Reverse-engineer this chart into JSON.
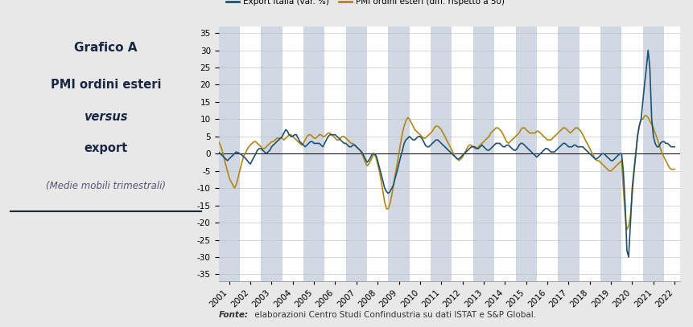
{
  "title_line1": "Grafico A",
  "title_line2": "PMI ordini esteri versus export",
  "subtitle": "(Medie mobili trimestrali)",
  "legend_export": "Export Italia (var. %)",
  "legend_pmi": "PMI ordini esteri (diff. rispetto a 50)",
  "fonte_bold": "Fonte:",
  "fonte_rest": " elaborazioni Centro Studi Confindustria su dati ISTAT e S&P Global.",
  "color_export": "#1a5276",
  "color_pmi": "#b5860a",
  "bg_color": "#e8e8e8",
  "plot_bg": "#ffffff",
  "band_color": "#d0d8e4",
  "ylim": [
    -37,
    37
  ],
  "yticks": [
    -35,
    -30,
    -25,
    -20,
    -15,
    -10,
    -5,
    0,
    5,
    10,
    15,
    20,
    25,
    30,
    35
  ],
  "years": [
    2001,
    2002,
    2003,
    2004,
    2005,
    2006,
    2007,
    2008,
    2009,
    2010,
    2011,
    2012,
    2013,
    2014,
    2015,
    2016,
    2017,
    2018,
    2019,
    2020,
    2021,
    2022
  ],
  "export_t": [
    2001.0,
    2001.08,
    2001.17,
    2001.25,
    2001.33,
    2001.42,
    2001.5,
    2001.58,
    2001.67,
    2001.75,
    2001.83,
    2001.92,
    2002.0,
    2002.08,
    2002.17,
    2002.25,
    2002.33,
    2002.42,
    2002.5,
    2002.58,
    2002.67,
    2002.75,
    2002.83,
    2002.92,
    2003.0,
    2003.08,
    2003.17,
    2003.25,
    2003.33,
    2003.42,
    2003.5,
    2003.58,
    2003.67,
    2003.75,
    2003.83,
    2003.92,
    2004.0,
    2004.08,
    2004.17,
    2004.25,
    2004.33,
    2004.42,
    2004.5,
    2004.58,
    2004.67,
    2004.75,
    2004.83,
    2004.92,
    2005.0,
    2005.08,
    2005.17,
    2005.25,
    2005.33,
    2005.42,
    2005.5,
    2005.58,
    2005.67,
    2005.75,
    2005.83,
    2005.92,
    2006.0,
    2006.08,
    2006.17,
    2006.25,
    2006.33,
    2006.42,
    2006.5,
    2006.58,
    2006.67,
    2006.75,
    2006.83,
    2006.92,
    2007.0,
    2007.08,
    2007.17,
    2007.25,
    2007.33,
    2007.42,
    2007.5,
    2007.58,
    2007.67,
    2007.75,
    2007.83,
    2007.92,
    2008.0,
    2008.08,
    2008.17,
    2008.25,
    2008.33,
    2008.42,
    2008.5,
    2008.58,
    2008.67,
    2008.75,
    2008.83,
    2008.92,
    2009.0,
    2009.08,
    2009.17,
    2009.25,
    2009.33,
    2009.42,
    2009.5,
    2009.58,
    2009.67,
    2009.75,
    2009.83,
    2009.92,
    2010.0,
    2010.08,
    2010.17,
    2010.25,
    2010.33,
    2010.42,
    2010.5,
    2010.58,
    2010.67,
    2010.75,
    2010.83,
    2010.92,
    2011.0,
    2011.08,
    2011.17,
    2011.25,
    2011.33,
    2011.42,
    2011.5,
    2011.58,
    2011.67,
    2011.75,
    2011.83,
    2011.92,
    2012.0,
    2012.08,
    2012.17,
    2012.25,
    2012.33,
    2012.42,
    2012.5,
    2012.58,
    2012.67,
    2012.75,
    2012.83,
    2012.92,
    2013.0,
    2013.08,
    2013.17,
    2013.25,
    2013.33,
    2013.42,
    2013.5,
    2013.58,
    2013.67,
    2013.75,
    2013.83,
    2013.92,
    2014.0,
    2014.08,
    2014.17,
    2014.25,
    2014.33,
    2014.42,
    2014.5,
    2014.58,
    2014.67,
    2014.75,
    2014.83,
    2014.92,
    2015.0,
    2015.08,
    2015.17,
    2015.25,
    2015.33,
    2015.42,
    2015.5,
    2015.58,
    2015.67,
    2015.75,
    2015.83,
    2015.92,
    2016.0,
    2016.08,
    2016.17,
    2016.25,
    2016.33,
    2016.42,
    2016.5,
    2016.58,
    2016.67,
    2016.75,
    2016.83,
    2016.92,
    2017.0,
    2017.08,
    2017.17,
    2017.25,
    2017.33,
    2017.42,
    2017.5,
    2017.58,
    2017.67,
    2017.75,
    2017.83,
    2017.92,
    2018.0,
    2018.08,
    2018.17,
    2018.25,
    2018.33,
    2018.42,
    2018.5,
    2018.58,
    2018.67,
    2018.75,
    2018.83,
    2018.92,
    2019.0,
    2019.08,
    2019.17,
    2019.25,
    2019.33,
    2019.42,
    2019.5,
    2019.58,
    2019.67,
    2019.75,
    2019.83,
    2019.92,
    2020.0,
    2020.08,
    2020.17,
    2020.25,
    2020.33,
    2020.42,
    2020.5,
    2020.58,
    2020.67,
    2020.75,
    2020.83,
    2020.92,
    2021.0,
    2021.08,
    2021.17,
    2021.25,
    2021.33,
    2021.42,
    2021.5,
    2021.58,
    2021.67,
    2021.75,
    2021.83,
    2021.92,
    2022.0,
    2022.08,
    2022.17,
    2022.25,
    2022.33,
    2022.42,
    2022.5
  ],
  "export_v": [
    0.5,
    0.0,
    -0.5,
    -1.0,
    -1.5,
    -2.0,
    -1.5,
    -1.0,
    -0.5,
    0.0,
    0.5,
    0.3,
    0.0,
    -0.3,
    -0.8,
    -1.2,
    -1.8,
    -2.5,
    -3.0,
    -2.0,
    -1.0,
    0.0,
    1.0,
    1.5,
    1.5,
    1.0,
    0.5,
    0.0,
    0.5,
    1.0,
    2.0,
    2.5,
    3.0,
    3.5,
    4.0,
    4.5,
    5.0,
    6.0,
    7.0,
    6.5,
    5.5,
    5.0,
    5.0,
    5.5,
    5.5,
    4.5,
    3.5,
    3.0,
    2.5,
    2.0,
    2.5,
    3.0,
    3.5,
    3.5,
    3.0,
    3.0,
    3.0,
    3.0,
    2.5,
    2.0,
    3.0,
    4.0,
    5.0,
    5.5,
    5.5,
    5.5,
    5.5,
    5.0,
    4.5,
    4.0,
    3.5,
    3.0,
    3.0,
    2.5,
    2.0,
    2.0,
    2.5,
    2.5,
    2.0,
    1.5,
    1.0,
    0.5,
    -0.5,
    -1.5,
    -2.5,
    -2.0,
    -1.0,
    0.0,
    0.0,
    -0.5,
    -2.0,
    -4.0,
    -6.0,
    -8.0,
    -10.0,
    -11.0,
    -11.5,
    -11.0,
    -10.0,
    -9.0,
    -7.0,
    -5.0,
    -3.0,
    -1.0,
    1.0,
    3.0,
    4.0,
    4.5,
    5.0,
    4.5,
    4.0,
    4.0,
    4.5,
    5.0,
    5.0,
    4.5,
    3.5,
    2.5,
    2.0,
    2.0,
    2.5,
    3.0,
    3.5,
    4.0,
    4.0,
    3.5,
    3.0,
    2.5,
    2.0,
    1.5,
    1.0,
    0.5,
    0.0,
    -0.5,
    -1.0,
    -1.5,
    -1.5,
    -1.0,
    -0.5,
    0.0,
    0.5,
    1.0,
    1.5,
    2.0,
    2.0,
    2.0,
    1.5,
    1.5,
    2.0,
    2.5,
    2.0,
    1.5,
    1.0,
    1.0,
    1.5,
    2.0,
    2.5,
    3.0,
    3.0,
    3.0,
    2.5,
    2.0,
    2.0,
    2.5,
    2.5,
    2.0,
    1.5,
    1.0,
    1.0,
    1.5,
    2.5,
    3.0,
    3.0,
    2.5,
    2.0,
    1.5,
    1.0,
    0.5,
    0.0,
    -0.5,
    -1.0,
    -0.5,
    0.0,
    0.5,
    1.0,
    1.5,
    1.5,
    1.0,
    0.5,
    0.5,
    0.5,
    1.0,
    1.5,
    2.0,
    2.5,
    3.0,
    3.0,
    2.5,
    2.0,
    2.0,
    2.0,
    2.5,
    2.5,
    2.0,
    2.0,
    2.0,
    2.0,
    1.5,
    1.0,
    0.5,
    0.0,
    -0.5,
    -1.0,
    -1.5,
    -1.5,
    -1.0,
    -0.5,
    0.0,
    0.0,
    -0.5,
    -1.0,
    -1.5,
    -2.0,
    -2.0,
    -1.5,
    -1.0,
    -0.5,
    0.0,
    0.0,
    -5.0,
    -15.0,
    -28.0,
    -30.0,
    -20.0,
    -10.0,
    -5.0,
    0.0,
    5.0,
    8.0,
    10.0,
    15.0,
    20.0,
    25.0,
    30.0,
    25.0,
    10.0,
    5.0,
    3.0,
    2.0,
    2.0,
    3.0,
    3.5,
    3.5,
    3.0,
    3.0,
    2.5,
    2.0,
    2.0,
    2.0
  ],
  "pmi_t": [
    2001.0,
    2001.08,
    2001.17,
    2001.25,
    2001.33,
    2001.42,
    2001.5,
    2001.58,
    2001.67,
    2001.75,
    2001.83,
    2001.92,
    2002.0,
    2002.08,
    2002.17,
    2002.25,
    2002.33,
    2002.42,
    2002.5,
    2002.58,
    2002.67,
    2002.75,
    2002.83,
    2002.92,
    2003.0,
    2003.08,
    2003.17,
    2003.25,
    2003.33,
    2003.42,
    2003.5,
    2003.58,
    2003.67,
    2003.75,
    2003.83,
    2003.92,
    2004.0,
    2004.08,
    2004.17,
    2004.25,
    2004.33,
    2004.42,
    2004.5,
    2004.58,
    2004.67,
    2004.75,
    2004.83,
    2004.92,
    2005.0,
    2005.08,
    2005.17,
    2005.25,
    2005.33,
    2005.42,
    2005.5,
    2005.58,
    2005.67,
    2005.75,
    2005.83,
    2005.92,
    2006.0,
    2006.08,
    2006.17,
    2006.25,
    2006.33,
    2006.42,
    2006.5,
    2006.58,
    2006.67,
    2006.75,
    2006.83,
    2006.92,
    2007.0,
    2007.08,
    2007.17,
    2007.25,
    2007.33,
    2007.42,
    2007.5,
    2007.58,
    2007.67,
    2007.75,
    2007.83,
    2007.92,
    2008.0,
    2008.08,
    2008.17,
    2008.25,
    2008.33,
    2008.42,
    2008.5,
    2008.58,
    2008.67,
    2008.75,
    2008.83,
    2008.92,
    2009.0,
    2009.08,
    2009.17,
    2009.25,
    2009.33,
    2009.42,
    2009.5,
    2009.58,
    2009.67,
    2009.75,
    2009.83,
    2009.92,
    2010.0,
    2010.08,
    2010.17,
    2010.25,
    2010.33,
    2010.42,
    2010.5,
    2010.58,
    2010.67,
    2010.75,
    2010.83,
    2010.92,
    2011.0,
    2011.08,
    2011.17,
    2011.25,
    2011.33,
    2011.42,
    2011.5,
    2011.58,
    2011.67,
    2011.75,
    2011.83,
    2011.92,
    2012.0,
    2012.08,
    2012.17,
    2012.25,
    2012.33,
    2012.42,
    2012.5,
    2012.58,
    2012.67,
    2012.75,
    2012.83,
    2012.92,
    2013.0,
    2013.08,
    2013.17,
    2013.25,
    2013.33,
    2013.42,
    2013.5,
    2013.58,
    2013.67,
    2013.75,
    2013.83,
    2013.92,
    2014.0,
    2014.08,
    2014.17,
    2014.25,
    2014.33,
    2014.42,
    2014.5,
    2014.58,
    2014.67,
    2014.75,
    2014.83,
    2014.92,
    2015.0,
    2015.08,
    2015.17,
    2015.25,
    2015.33,
    2015.42,
    2015.5,
    2015.58,
    2015.67,
    2015.75,
    2015.83,
    2015.92,
    2016.0,
    2016.08,
    2016.17,
    2016.25,
    2016.33,
    2016.42,
    2016.5,
    2016.58,
    2016.67,
    2016.75,
    2016.83,
    2016.92,
    2017.0,
    2017.08,
    2017.17,
    2017.25,
    2017.33,
    2017.42,
    2017.5,
    2017.58,
    2017.67,
    2017.75,
    2017.83,
    2017.92,
    2018.0,
    2018.08,
    2018.17,
    2018.25,
    2018.33,
    2018.42,
    2018.5,
    2018.58,
    2018.67,
    2018.75,
    2018.83,
    2018.92,
    2019.0,
    2019.08,
    2019.17,
    2019.25,
    2019.33,
    2019.42,
    2019.5,
    2019.58,
    2019.67,
    2019.75,
    2019.83,
    2019.92,
    2020.0,
    2020.08,
    2020.17,
    2020.25,
    2020.33,
    2020.42,
    2020.5,
    2020.58,
    2020.67,
    2020.75,
    2020.83,
    2020.92,
    2021.0,
    2021.08,
    2021.17,
    2021.25,
    2021.33,
    2021.42,
    2021.5,
    2021.58,
    2021.67,
    2021.75,
    2021.83,
    2021.92,
    2022.0,
    2022.08,
    2022.17,
    2022.25,
    2022.33,
    2022.42,
    2022.5
  ],
  "pmi_v": [
    3.5,
    2.5,
    1.0,
    -1.0,
    -3.0,
    -5.0,
    -7.0,
    -8.0,
    -9.0,
    -10.0,
    -9.0,
    -7.0,
    -5.0,
    -3.0,
    -1.0,
    0.0,
    1.0,
    2.0,
    2.5,
    3.0,
    3.5,
    3.5,
    3.0,
    2.5,
    2.0,
    1.5,
    1.5,
    2.0,
    2.5,
    3.0,
    3.5,
    3.5,
    4.0,
    4.5,
    4.5,
    4.5,
    4.5,
    4.0,
    4.5,
    5.0,
    5.5,
    5.5,
    5.0,
    4.5,
    4.0,
    3.5,
    3.0,
    2.5,
    3.0,
    4.0,
    5.0,
    5.5,
    5.5,
    5.0,
    4.5,
    4.5,
    5.0,
    5.5,
    5.5,
    5.0,
    5.0,
    5.5,
    6.0,
    6.0,
    5.5,
    5.0,
    4.5,
    4.0,
    4.0,
    4.5,
    5.0,
    5.0,
    4.5,
    4.0,
    3.5,
    3.0,
    3.0,
    2.5,
    2.0,
    1.5,
    1.0,
    0.0,
    -1.0,
    -2.5,
    -3.5,
    -3.0,
    -2.0,
    -1.0,
    0.0,
    -1.0,
    -3.0,
    -5.0,
    -8.0,
    -11.0,
    -14.0,
    -16.0,
    -16.0,
    -14.5,
    -12.0,
    -9.0,
    -6.0,
    -3.0,
    0.0,
    3.0,
    6.0,
    8.0,
    9.5,
    10.5,
    10.0,
    9.0,
    8.0,
    7.0,
    6.5,
    6.0,
    5.5,
    5.0,
    4.5,
    4.5,
    5.0,
    5.5,
    6.0,
    6.5,
    7.5,
    8.0,
    8.0,
    7.5,
    7.0,
    6.0,
    5.0,
    4.0,
    3.0,
    2.0,
    1.0,
    0.0,
    -1.0,
    -1.5,
    -2.0,
    -1.5,
    -1.0,
    0.0,
    1.0,
    2.0,
    2.5,
    2.5,
    2.0,
    1.5,
    1.5,
    2.0,
    2.5,
    3.0,
    3.5,
    4.0,
    4.5,
    5.0,
    6.0,
    6.5,
    7.0,
    7.5,
    7.5,
    7.0,
    6.5,
    5.5,
    4.5,
    3.5,
    3.0,
    3.5,
    4.0,
    4.5,
    5.0,
    5.5,
    6.0,
    7.0,
    7.5,
    7.5,
    7.0,
    6.5,
    6.0,
    6.0,
    6.0,
    6.0,
    6.5,
    6.5,
    6.0,
    5.5,
    5.0,
    4.5,
    4.0,
    4.0,
    4.0,
    4.5,
    5.0,
    5.5,
    6.0,
    6.5,
    7.0,
    7.5,
    7.5,
    7.0,
    6.5,
    6.0,
    6.5,
    7.0,
    7.5,
    7.5,
    7.0,
    6.5,
    5.5,
    4.5,
    3.5,
    2.5,
    1.5,
    0.5,
    -0.5,
    -1.5,
    -2.0,
    -2.0,
    -2.5,
    -3.0,
    -3.5,
    -4.0,
    -4.5,
    -5.0,
    -5.0,
    -4.5,
    -4.0,
    -3.5,
    -3.0,
    -2.5,
    -2.0,
    -10.0,
    -18.0,
    -22.0,
    -21.0,
    -18.0,
    -12.0,
    -6.0,
    0.0,
    5.0,
    8.0,
    10.0,
    10.0,
    11.0,
    11.0,
    10.5,
    9.5,
    8.5,
    7.5,
    6.0,
    4.5,
    3.0,
    1.5,
    0.0,
    -1.0,
    -2.0,
    -3.0,
    -4.0,
    -4.5,
    -4.5,
    -4.5
  ]
}
